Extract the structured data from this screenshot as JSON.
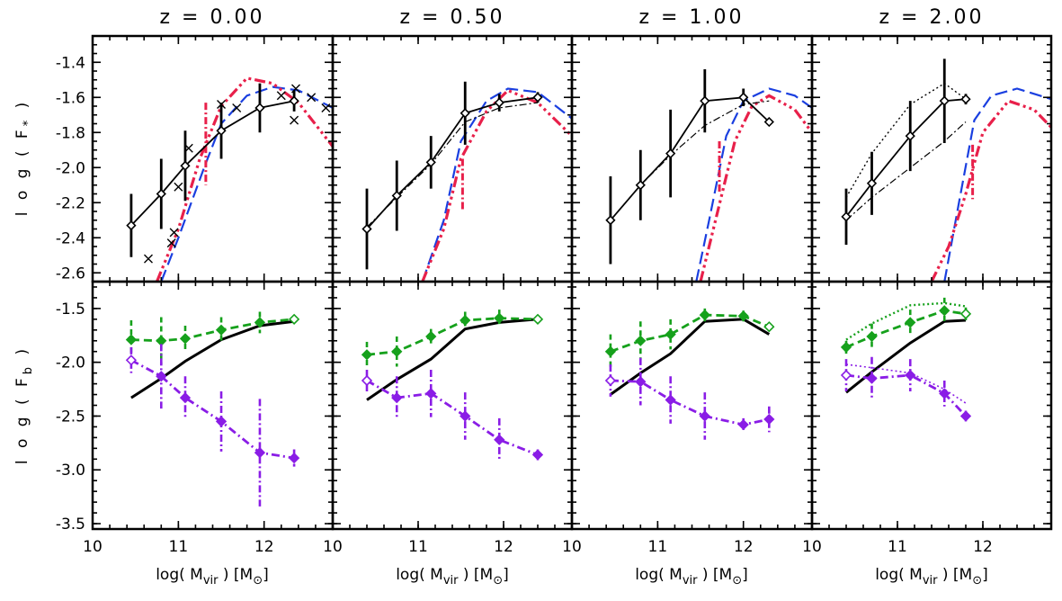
{
  "colors": {
    "black": "#000000",
    "red": "#e8204a",
    "blue": "#1a3fe0",
    "green": "#16a11c",
    "purple": "#8a1de6"
  },
  "chart_data": {
    "type": "line",
    "figure_layout": "2 rows x 4 columns of panels sharing x and row-wise y axes",
    "column_titles": [
      "z = 0.00",
      "z = 0.50",
      "z = 1.00",
      "z = 2.00"
    ],
    "xlabel": "log( M",
    "xlabel_sub": "vir",
    "xlabel_tail": " ) [M",
    "xlabel_end": "]",
    "ylabel_top": "l o g ( F",
    "ylabel_top_sub": "*",
    "ylabel_top_end": " )",
    "ylabel_bottom": "l o g ( F",
    "ylabel_bottom_sub": "b",
    "ylabel_bottom_end": " )",
    "xlim": [
      10,
      12.8
    ],
    "xticks": [
      10,
      11,
      12
    ],
    "x_tick_labels": [
      "10",
      "11",
      "12"
    ],
    "top_ylim": [
      -2.65,
      -1.25
    ],
    "top_yticks": [
      -2.6,
      -2.4,
      -2.2,
      -2.0,
      -1.8,
      -1.6,
      -1.4
    ],
    "top_ytick_labels": [
      "-2.6",
      "-2.4",
      "-2.2",
      "-2.0",
      "-1.8",
      "-1.6",
      "-1.4"
    ],
    "bottom_ylim": [
      -3.55,
      -1.25
    ],
    "bottom_yticks": [
      -3.5,
      -3.0,
      -2.5,
      -2.0,
      -1.5
    ],
    "bottom_ytick_labels": [
      "-3.5",
      "-3.0",
      "-2.5",
      "-2.0",
      "-1.5"
    ],
    "grid": false,
    "legend": "none",
    "top_row": [
      {
        "title": "z = 0.00",
        "main": {
          "x": [
            10.45,
            10.8,
            11.08,
            11.5,
            11.95,
            12.35
          ],
          "y": [
            -2.33,
            -2.15,
            -1.99,
            -1.79,
            -1.66,
            -1.62
          ],
          "err": [
            0.18,
            0.2,
            0.2,
            0.16,
            0.14,
            0.06
          ]
        },
        "crosses": {
          "x": [
            10.65,
            10.92,
            10.95,
            11.0,
            11.12,
            11.5,
            11.68,
            12.2,
            12.35,
            12.37,
            12.55,
            12.72
          ],
          "y": [
            -2.52,
            -2.43,
            -2.37,
            -2.11,
            -1.89,
            -1.64,
            -1.66,
            -1.59,
            -1.73,
            -1.55,
            -1.6,
            -1.66
          ]
        },
        "dashdot": null,
        "dotted": null,
        "blue": {
          "x": [
            10.8,
            11.0,
            11.3,
            11.5,
            11.8,
            12.1,
            12.4,
            12.8
          ],
          "y": [
            -2.65,
            -2.4,
            -2.0,
            -1.75,
            -1.59,
            -1.54,
            -1.56,
            -1.66
          ]
        },
        "red": {
          "x": [
            10.75,
            11.0,
            11.25,
            11.5,
            11.8,
            12.1,
            12.4,
            12.8
          ],
          "y": [
            -2.65,
            -2.35,
            -1.95,
            -1.65,
            -1.49,
            -1.52,
            -1.63,
            -1.88
          ]
        },
        "red_spike": {
          "x": 11.32,
          "y": [
            -1.63,
            -2.1
          ]
        }
      },
      {
        "title": "z = 0.50",
        "main": {
          "x": [
            10.4,
            10.75,
            11.15,
            11.55,
            11.95,
            12.4
          ],
          "y": [
            -2.35,
            -2.16,
            -1.97,
            -1.69,
            -1.63,
            -1.6
          ],
          "err": [
            0.23,
            0.2,
            0.15,
            0.18,
            0.05,
            0.03
          ]
        },
        "crosses": null,
        "dashdot": {
          "x": [
            10.4,
            10.75,
            11.15,
            11.55,
            11.95,
            12.4
          ],
          "y": [
            -2.34,
            -2.17,
            -1.98,
            -1.74,
            -1.66,
            -1.63
          ]
        },
        "dotted": null,
        "blue": {
          "x": [
            11.05,
            11.3,
            11.5,
            11.8,
            12.05,
            12.4,
            12.8
          ],
          "y": [
            -2.65,
            -2.3,
            -1.85,
            -1.62,
            -1.55,
            -1.57,
            -1.72
          ]
        },
        "red": {
          "x": [
            11.05,
            11.3,
            11.5,
            11.8,
            12.05,
            12.4,
            12.8
          ],
          "y": [
            -2.65,
            -2.35,
            -1.95,
            -1.68,
            -1.56,
            -1.63,
            -1.82
          ]
        },
        "red_spike": {
          "x": 11.52,
          "y": [
            -1.95,
            -2.24
          ]
        }
      },
      {
        "title": "z = 1.00",
        "main": {
          "x": [
            10.45,
            10.8,
            11.15,
            11.55,
            12.0,
            12.3
          ],
          "y": [
            -2.3,
            -2.1,
            -1.92,
            -1.62,
            -1.6,
            -1.74
          ],
          "err": [
            0.25,
            0.2,
            0.25,
            0.18,
            0.05,
            0.02
          ]
        },
        "crosses": null,
        "dashdot": {
          "x": [
            10.45,
            10.8,
            11.15,
            11.55,
            12.0,
            12.3
          ],
          "y": [
            -2.3,
            -2.1,
            -1.93,
            -1.76,
            -1.64,
            -1.62
          ]
        },
        "dotted": null,
        "blue": {
          "x": [
            11.45,
            11.6,
            11.8,
            12.0,
            12.3,
            12.6,
            12.8
          ],
          "y": [
            -2.65,
            -2.3,
            -1.82,
            -1.62,
            -1.55,
            -1.59,
            -1.66
          ]
        },
        "red": {
          "x": [
            11.5,
            11.7,
            11.9,
            12.1,
            12.3,
            12.6,
            12.8
          ],
          "y": [
            -2.65,
            -2.25,
            -1.85,
            -1.65,
            -1.59,
            -1.67,
            -1.8
          ]
        },
        "red_spike": {
          "x": 11.72,
          "y": [
            -1.85,
            -2.15
          ]
        }
      },
      {
        "title": "z = 2.00",
        "main": {
          "x": [
            10.4,
            10.7,
            11.15,
            11.55,
            11.8
          ],
          "y": [
            -2.28,
            -2.09,
            -1.82,
            -1.62,
            -1.61
          ],
          "err": [
            0.16,
            0.18,
            0.2,
            0.24,
            0.03
          ]
        },
        "crosses": null,
        "dashdot": {
          "x": [
            10.4,
            10.7,
            11.15,
            11.55,
            11.8
          ],
          "y": [
            -2.3,
            -2.17,
            -2.0,
            -1.85,
            -1.74
          ]
        },
        "dotted": {
          "x": [
            10.4,
            10.7,
            11.15,
            11.55,
            11.8
          ],
          "y": [
            -2.17,
            -1.92,
            -1.64,
            -1.52,
            -1.61
          ]
        },
        "blue": {
          "x": [
            11.55,
            11.72,
            11.9,
            12.1,
            12.4,
            12.8
          ],
          "y": [
            -2.65,
            -2.2,
            -1.73,
            -1.59,
            -1.55,
            -1.61
          ]
        },
        "red": {
          "x": [
            11.4,
            11.6,
            11.8,
            12.0,
            12.3,
            12.6,
            12.8
          ],
          "y": [
            -2.65,
            -2.45,
            -2.15,
            -1.8,
            -1.62,
            -1.67,
            -1.77
          ]
        },
        "red_spike": {
          "x": 11.88,
          "y": [
            -1.87,
            -2.18
          ]
        }
      }
    ],
    "bottom_row": [
      {
        "title": "z = 0.00",
        "black": {
          "x": [
            10.45,
            10.8,
            11.08,
            11.5,
            11.95,
            12.35
          ],
          "y": [
            -2.33,
            -2.15,
            -1.99,
            -1.79,
            -1.66,
            -1.62
          ]
        },
        "green": {
          "x": [
            10.45,
            10.8,
            11.08,
            11.5,
            11.95,
            12.35
          ],
          "y": [
            -1.79,
            -1.8,
            -1.78,
            -1.7,
            -1.63,
            -1.6
          ],
          "err": [
            0.18,
            0.22,
            0.12,
            0.12,
            0.1,
            0.04
          ]
        },
        "green_dotted": null,
        "purple": {
          "x": [
            10.45,
            10.8,
            11.08,
            11.5,
            11.95,
            12.35
          ],
          "y": [
            -1.98,
            -2.13,
            -2.33,
            -2.55,
            -2.84,
            -2.89
          ],
          "err": [
            0.12,
            0.3,
            0.2,
            0.28,
            0.5,
            0.08
          ]
        },
        "purple_dotted": null
      },
      {
        "title": "z = 0.50",
        "black": {
          "x": [
            10.4,
            10.75,
            11.15,
            11.55,
            11.95,
            12.4
          ],
          "y": [
            -2.35,
            -2.16,
            -1.97,
            -1.69,
            -1.63,
            -1.6
          ]
        },
        "green": {
          "x": [
            10.4,
            10.75,
            11.15,
            11.55,
            11.95,
            12.4
          ],
          "y": [
            -1.93,
            -1.9,
            -1.76,
            -1.61,
            -1.59,
            -1.6
          ],
          "err": [
            0.12,
            0.14,
            0.07,
            0.08,
            0.08,
            0.02
          ]
        },
        "green_dotted": null,
        "purple": {
          "x": [
            10.4,
            10.75,
            11.15,
            11.55,
            11.95,
            12.4
          ],
          "y": [
            -2.17,
            -2.33,
            -2.29,
            -2.5,
            -2.72,
            -2.86
          ],
          "err": [
            0.1,
            0.2,
            0.22,
            0.22,
            0.2,
            0.05
          ]
        },
        "purple_dotted": null
      },
      {
        "title": "z = 1.00",
        "black": {
          "x": [
            10.45,
            10.8,
            11.15,
            11.55,
            12.0,
            12.3
          ],
          "y": [
            -2.3,
            -2.1,
            -1.92,
            -1.62,
            -1.6,
            -1.74
          ]
        },
        "green": {
          "x": [
            10.45,
            10.8,
            11.15,
            11.55,
            12.0,
            12.3
          ],
          "y": [
            -1.9,
            -1.8,
            -1.74,
            -1.56,
            -1.57,
            -1.67
          ],
          "err": [
            0.16,
            0.18,
            0.14,
            0.06,
            0.05,
            0.03
          ]
        },
        "green_dotted": null,
        "purple": {
          "x": [
            10.45,
            10.8,
            11.15,
            11.55,
            12.0,
            12.3
          ],
          "y": [
            -2.17,
            -2.18,
            -2.35,
            -2.5,
            -2.58,
            -2.53
          ],
          "err": [
            0.15,
            0.22,
            0.22,
            0.22,
            0.06,
            0.12
          ]
        },
        "purple_dotted": null
      },
      {
        "title": "z = 2.00",
        "black": {
          "x": [
            10.4,
            10.7,
            11.15,
            11.55,
            11.8
          ],
          "y": [
            -2.28,
            -2.09,
            -1.82,
            -1.62,
            -1.61
          ]
        },
        "green": {
          "x": [
            10.4,
            10.7,
            11.15,
            11.55,
            11.8
          ],
          "y": [
            -1.86,
            -1.76,
            -1.63,
            -1.52,
            -1.55
          ],
          "err": [
            0.06,
            0.12,
            0.12,
            0.12,
            0.06
          ]
        },
        "green_dotted": {
          "x": [
            10.4,
            10.7,
            11.15,
            11.55,
            11.8
          ],
          "y": [
            -1.79,
            -1.64,
            -1.47,
            -1.45,
            -1.48
          ]
        },
        "purple": {
          "x": [
            10.4,
            10.7,
            11.15,
            11.55,
            11.8
          ],
          "y": [
            -2.12,
            -2.15,
            -2.12,
            -2.29,
            -2.5
          ],
          "err": [
            0.15,
            0.2,
            0.15,
            0.12,
            0.05
          ]
        },
        "purple_dotted": {
          "x": [
            10.4,
            10.7,
            11.15,
            11.55,
            11.8
          ],
          "y": [
            -2.02,
            -2.05,
            -2.1,
            -2.25,
            -2.38
          ]
        }
      }
    ]
  }
}
